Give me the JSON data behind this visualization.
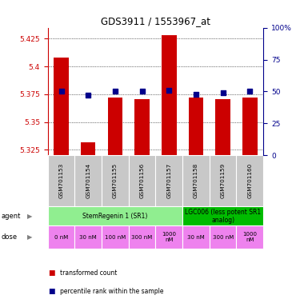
{
  "title": "GDS3911 / 1553967_at",
  "samples": [
    "GSM701153",
    "GSM701154",
    "GSM701155",
    "GSM701156",
    "GSM701157",
    "GSM701158",
    "GSM701159",
    "GSM701160"
  ],
  "red_values": [
    5.408,
    5.332,
    5.372,
    5.371,
    5.428,
    5.372,
    5.371,
    5.372
  ],
  "blue_values": [
    50,
    47,
    50,
    50,
    51,
    48,
    49,
    50
  ],
  "ylim_left": [
    5.32,
    5.435
  ],
  "ylim_right": [
    0,
    100
  ],
  "yticks_left": [
    5.325,
    5.35,
    5.375,
    5.4,
    5.425
  ],
  "ytick_labels_left": [
    "5.325",
    "5.35",
    "5.375",
    "5.4",
    "5.425"
  ],
  "yticks_right": [
    0,
    25,
    50,
    75,
    100
  ],
  "ytick_labels_right": [
    "0",
    "25",
    "50",
    "75",
    "100%"
  ],
  "agent_groups": [
    {
      "label": "StemRegenin 1 (SR1)",
      "start": 0,
      "end": 5,
      "color": "#90EE90"
    },
    {
      "label": "LGC006 (less potent SR1\nanalog)",
      "start": 5,
      "end": 8,
      "color": "#00BB00"
    }
  ],
  "dose_labels": [
    "0 nM",
    "30 nM",
    "100 nM",
    "300 nM",
    "1000\nnM",
    "30 nM",
    "300 nM",
    "1000\nnM"
  ],
  "dose_color": "#EE82EE",
  "bar_color": "#CC0000",
  "dot_color": "#00008B",
  "bar_bottom": 5.32,
  "background": "#FFFFFF",
  "left_label_color": "#CC0000",
  "right_label_color": "#00008B",
  "sample_bg_color": "#C8C8C8",
  "legend_red_label": "transformed count",
  "legend_blue_label": "percentile rank within the sample"
}
